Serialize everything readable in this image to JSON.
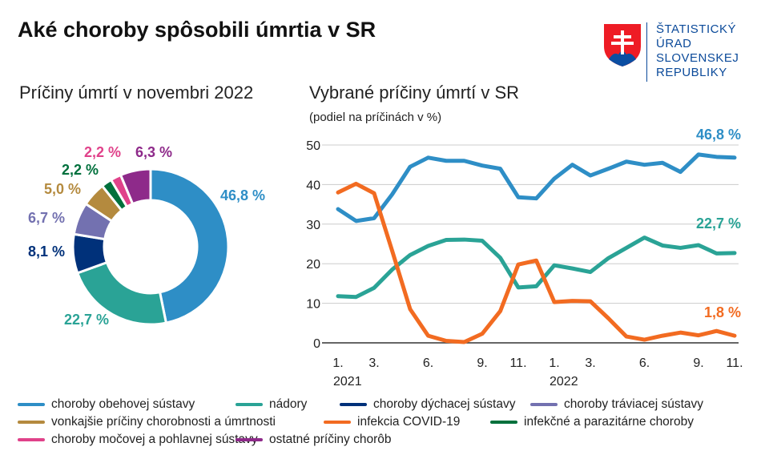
{
  "title": "Aké choroby spôsobili úmrtia v SR",
  "logo": {
    "lines": [
      "ŠTATISTICKÝ",
      "ÚRAD",
      "SLOVENSKEJ",
      "REPUBLIKY"
    ]
  },
  "chart_data": [
    {
      "type": "pie",
      "title": "Príčiny úmrtí v novembri 2022",
      "donut": true,
      "slices": [
        {
          "name": "choroby obehovej sústavy",
          "value": 46.8,
          "label": "46,8 %",
          "color": "#2e8ec6"
        },
        {
          "name": "nádory",
          "value": 22.7,
          "label": "22,7 %",
          "color": "#2aa396"
        },
        {
          "name": "choroby dýchacej sústavy",
          "value": 8.1,
          "label": "8,1 %",
          "color": "#00317a"
        },
        {
          "name": "choroby tráviacej sústavy",
          "value": 6.7,
          "label": "6,7 %",
          "color": "#7371b0"
        },
        {
          "name": "vonkajšie príčiny chorobnosti a úmrtnosti",
          "value": 5.0,
          "label": "5,0 %",
          "color": "#b48a3e"
        },
        {
          "name": "infekčné a parazitárne choroby",
          "value": 2.2,
          "label": "2,2 %",
          "color": "#00703c"
        },
        {
          "name": "choroby močovej a pohlavnej sústavy",
          "value": 2.2,
          "label": "2,2 %",
          "color": "#e0428a"
        },
        {
          "name": "ostatné príčiny chorôb",
          "value": 6.3,
          "label": "6,3 %",
          "color": "#8e2a8a"
        }
      ]
    },
    {
      "type": "line",
      "title": "Vybrané príčiny úmrtí v SR",
      "subtitle": "(podiel na príčinách v %)",
      "ylim": [
        0,
        50
      ],
      "yticks": [
        0,
        10,
        20,
        30,
        40,
        50
      ],
      "grid": true,
      "x": [
        "2021-01",
        "2021-02",
        "2021-03",
        "2021-04",
        "2021-05",
        "2021-06",
        "2021-07",
        "2021-08",
        "2021-09",
        "2021-10",
        "2021-11",
        "2021-12",
        "2022-01",
        "2022-02",
        "2022-03",
        "2022-04",
        "2022-05",
        "2022-06",
        "2022-07",
        "2022-08",
        "2022-09",
        "2022-10",
        "2022-11"
      ],
      "xticks": [
        {
          "i": 0,
          "label": "1."
        },
        {
          "i": 2,
          "label": "3."
        },
        {
          "i": 5,
          "label": "6."
        },
        {
          "i": 8,
          "label": "9."
        },
        {
          "i": 10,
          "label": "11."
        },
        {
          "i": 12,
          "label": "1."
        },
        {
          "i": 14,
          "label": "3."
        },
        {
          "i": 17,
          "label": "6."
        },
        {
          "i": 20,
          "label": "9."
        },
        {
          "i": 22,
          "label": "11."
        }
      ],
      "year_labels": [
        {
          "i": 0,
          "label": "2021"
        },
        {
          "i": 12,
          "label": "2022"
        }
      ],
      "series": [
        {
          "name": "choroby obehovej sústavy",
          "color": "#2e8ec6",
          "end_label": "46,8 %",
          "values": [
            33.8,
            30.8,
            31.5,
            37.5,
            44.5,
            46.8,
            46,
            46,
            44.8,
            44,
            36.8,
            36.5,
            41.5,
            45,
            42.3,
            44,
            45.8,
            45,
            45.5,
            43.2,
            47.6,
            47,
            46.8
          ]
        },
        {
          "name": "nádory",
          "color": "#2aa396",
          "end_label": "22,7 %",
          "values": [
            11.8,
            11.6,
            13.9,
            18.5,
            22.2,
            24.5,
            26,
            26.1,
            25.8,
            21.5,
            14,
            14.3,
            19.6,
            18.8,
            17.9,
            21.4,
            24,
            26.6,
            24.6,
            24,
            24.7,
            22.6,
            22.7
          ]
        },
        {
          "name": "infekcia COVID-19",
          "color": "#f26b21",
          "end_label": "1,8 %",
          "values": [
            38,
            40.2,
            37.8,
            23.3,
            8.5,
            1.8,
            0.5,
            0.2,
            2.3,
            8,
            19.8,
            20.8,
            10.3,
            10.6,
            10.5,
            6.2,
            1.6,
            0.8,
            1.8,
            2.6,
            1.9,
            3,
            1.8
          ]
        }
      ]
    }
  ],
  "legend": [
    {
      "label": "choroby obehovej sústavy",
      "color": "#2e8ec6"
    },
    {
      "label": "nádory",
      "color": "#2aa396"
    },
    {
      "label": "choroby dýchacej sústavy",
      "color": "#00317a"
    },
    {
      "label": "choroby tráviacej sústavy",
      "color": "#7371b0"
    },
    {
      "label": "vonkajšie príčiny chorobnosti a úmrtnosti",
      "color": "#b48a3e"
    },
    {
      "label": "infekcia COVID-19",
      "color": "#f26b21"
    },
    {
      "label": "infekčné a parazitárne choroby",
      "color": "#00703c"
    },
    {
      "label": "choroby močovej a pohlavnej sústavy",
      "color": "#e0428a"
    },
    {
      "label": "ostatné príčiny chorôb",
      "color": "#8e2a8a"
    }
  ]
}
